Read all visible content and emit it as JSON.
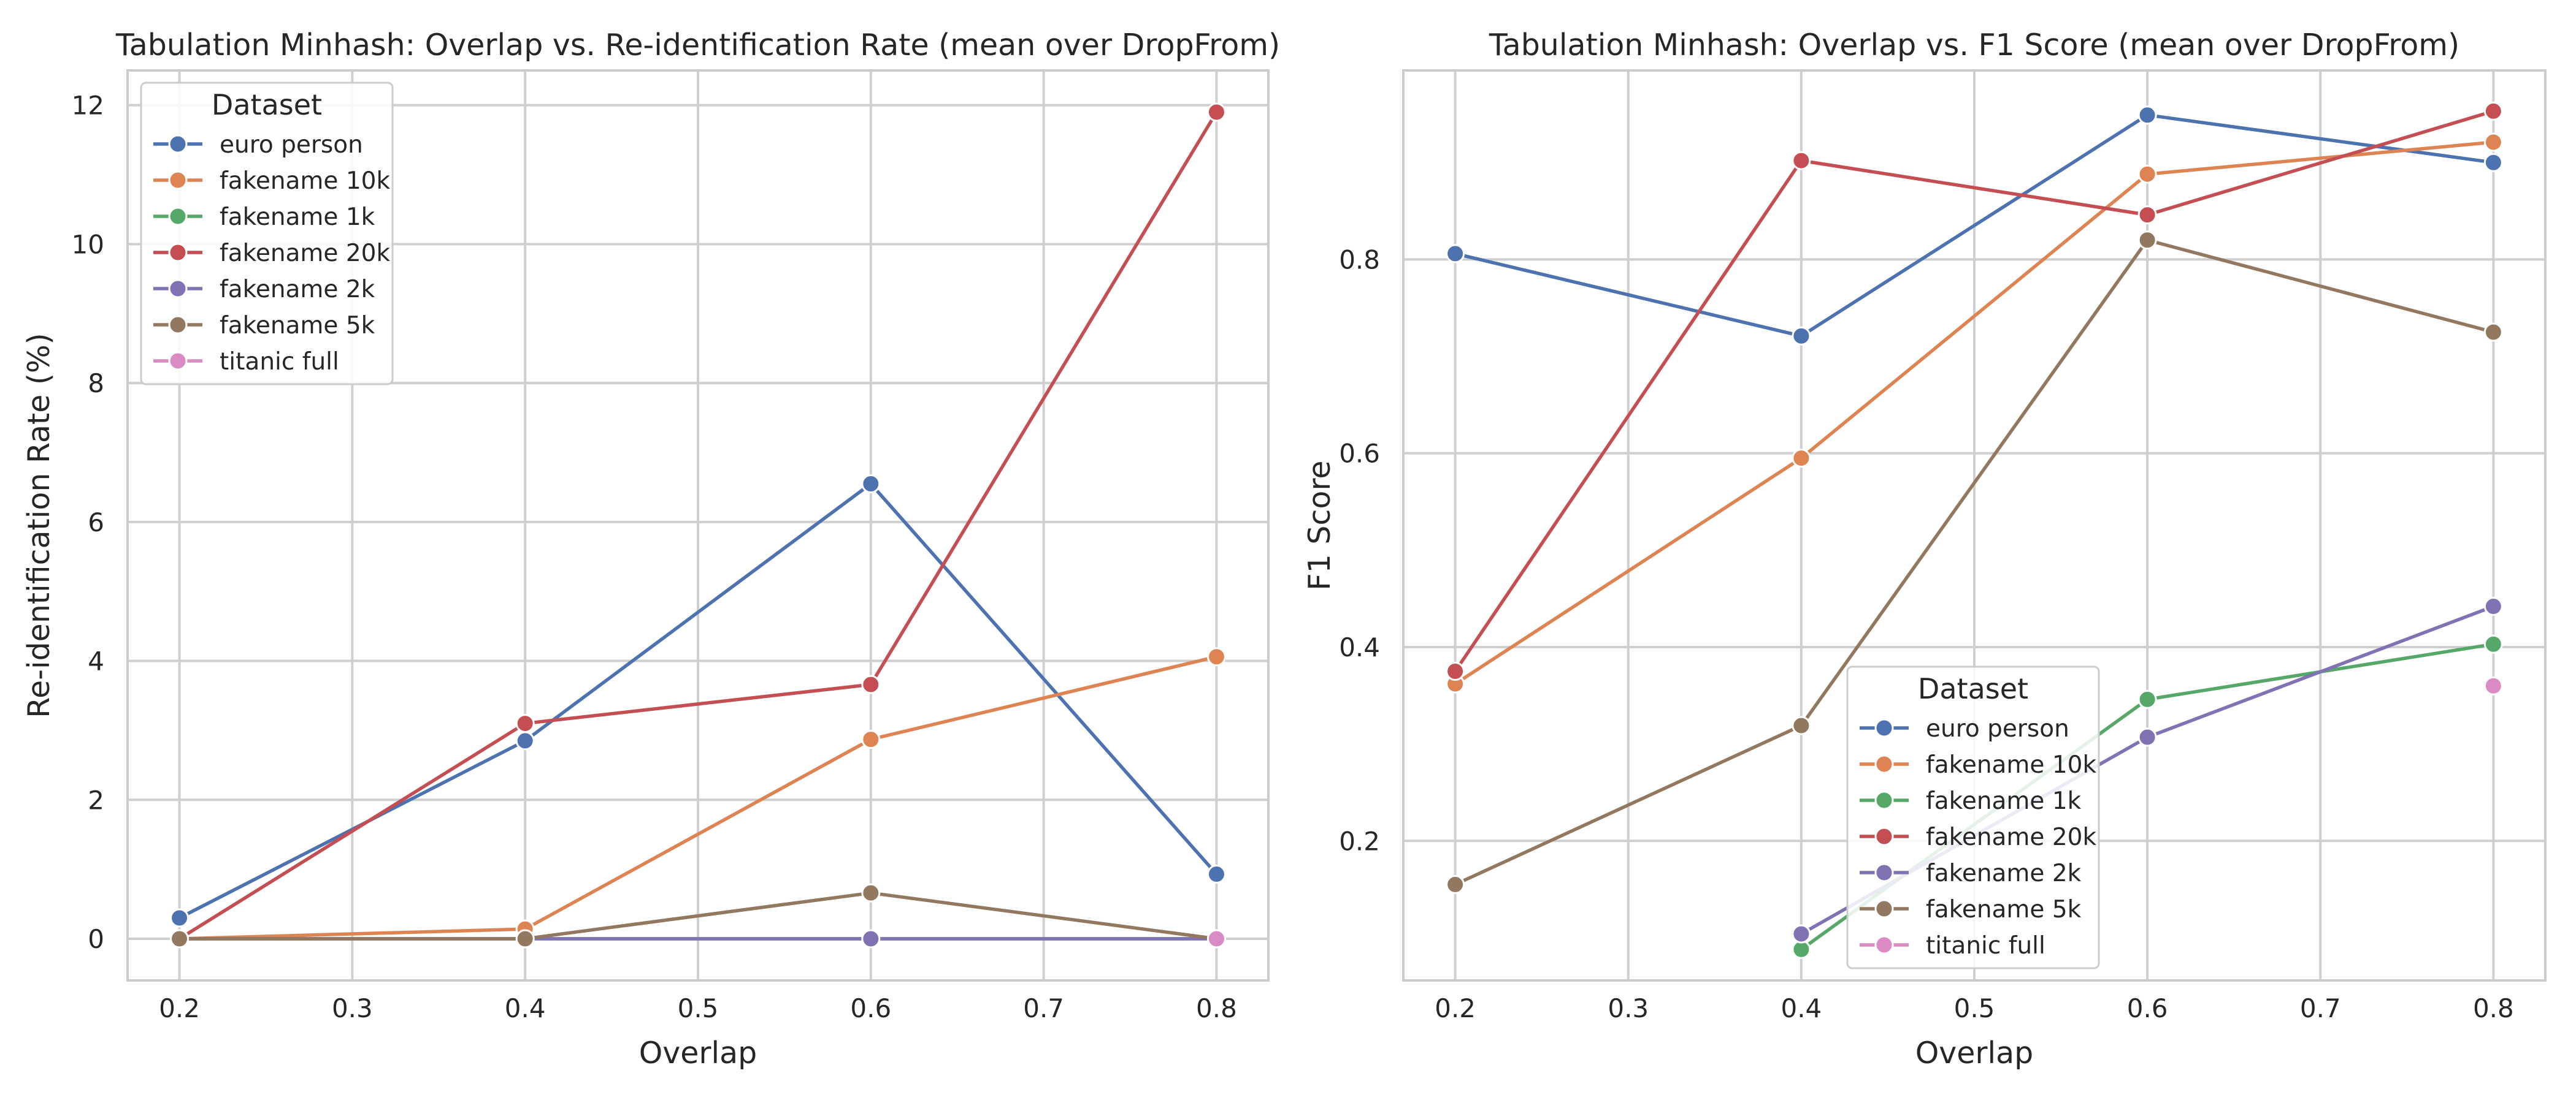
{
  "chart_data": [
    {
      "type": "line",
      "title": "Tabulation Minhash: Overlap vs. Re-identification Rate (mean over DropFrom)",
      "xlabel": "Overlap",
      "ylabel": "Re-identification Rate (%)",
      "xlim": [
        0.17,
        0.83
      ],
      "ylim": [
        -0.6,
        12.5
      ],
      "xticks": [
        0.2,
        0.3,
        0.4,
        0.5,
        0.6,
        0.7,
        0.8
      ],
      "xtick_labels": [
        "0.2",
        "0.3",
        "0.4",
        "0.5",
        "0.6",
        "0.7",
        "0.8"
      ],
      "yticks": [
        0,
        2,
        4,
        6,
        8,
        10,
        12
      ],
      "ytick_labels": [
        "0",
        "2",
        "4",
        "6",
        "8",
        "10",
        "12"
      ],
      "grid": true,
      "legend": {
        "title": "Dataset",
        "placement": "upper-left"
      },
      "series": [
        {
          "name": "euro person",
          "color": "#4c72b0",
          "x": [
            0.2,
            0.4,
            0.6,
            0.8
          ],
          "y": [
            0.3,
            2.85,
            6.55,
            0.93
          ]
        },
        {
          "name": "fakename 10k",
          "color": "#dd8452",
          "x": [
            0.2,
            0.4,
            0.6,
            0.8
          ],
          "y": [
            0,
            0.14,
            2.87,
            4.06
          ]
        },
        {
          "name": "fakename 1k",
          "color": "#55a868",
          "x": [
            0.2,
            0.4,
            0.6,
            0.8
          ],
          "y": [
            0,
            0,
            0,
            0
          ]
        },
        {
          "name": "fakename 20k",
          "color": "#c44e52",
          "x": [
            0.2,
            0.4,
            0.6,
            0.8
          ],
          "y": [
            0,
            3.1,
            3.66,
            11.9
          ]
        },
        {
          "name": "fakename 2k",
          "color": "#8172b3",
          "x": [
            0.2,
            0.4,
            0.6,
            0.8
          ],
          "y": [
            0,
            0,
            0,
            0
          ]
        },
        {
          "name": "fakename 5k",
          "color": "#937860",
          "x": [
            0.2,
            0.4,
            0.6,
            0.8
          ],
          "y": [
            0,
            0,
            0.66,
            0
          ]
        },
        {
          "name": "titanic full",
          "color": "#da8bc3",
          "x": [
            0.8
          ],
          "y": [
            0
          ]
        }
      ]
    },
    {
      "type": "line",
      "title": "Tabulation Minhash: Overlap vs. F1 Score (mean over DropFrom)",
      "xlabel": "Overlap",
      "ylabel": "F1 Score",
      "xlim": [
        0.17,
        0.83
      ],
      "ylim": [
        0.056,
        0.995
      ],
      "xticks": [
        0.2,
        0.3,
        0.4,
        0.5,
        0.6,
        0.7,
        0.8
      ],
      "xtick_labels": [
        "0.2",
        "0.3",
        "0.4",
        "0.5",
        "0.6",
        "0.7",
        "0.8"
      ],
      "yticks": [
        0.2,
        0.4,
        0.6,
        0.8
      ],
      "ytick_labels": [
        "0.2",
        "0.4",
        "0.6",
        "0.8"
      ],
      "grid": true,
      "legend": {
        "title": "Dataset",
        "placement": "lower-center"
      },
      "series": [
        {
          "name": "euro person",
          "color": "#4c72b0",
          "x": [
            0.2,
            0.4,
            0.6,
            0.8
          ],
          "y": [
            0.806,
            0.721,
            0.949,
            0.9
          ]
        },
        {
          "name": "fakename 10k",
          "color": "#dd8452",
          "x": [
            0.2,
            0.4,
            0.6,
            0.8
          ],
          "y": [
            0.362,
            0.595,
            0.888,
            0.921
          ]
        },
        {
          "name": "fakename 1k",
          "color": "#55a868",
          "x": [
            0.4,
            0.6,
            0.8
          ],
          "y": [
            0.088,
            0.346,
            0.403
          ]
        },
        {
          "name": "fakename 20k",
          "color": "#c44e52",
          "x": [
            0.2,
            0.4,
            0.6,
            0.8
          ],
          "y": [
            0.375,
            0.902,
            0.846,
            0.953
          ]
        },
        {
          "name": "fakename 2k",
          "color": "#8172b3",
          "x": [
            0.4,
            0.6,
            0.8
          ],
          "y": [
            0.104,
            0.307,
            0.442
          ]
        },
        {
          "name": "fakename 5k",
          "color": "#937860",
          "x": [
            0.2,
            0.4,
            0.6,
            0.8
          ],
          "y": [
            0.155,
            0.319,
            0.82,
            0.725
          ]
        },
        {
          "name": "titanic full",
          "color": "#da8bc3",
          "x": [
            0.8
          ],
          "y": [
            0.36
          ]
        }
      ]
    }
  ]
}
